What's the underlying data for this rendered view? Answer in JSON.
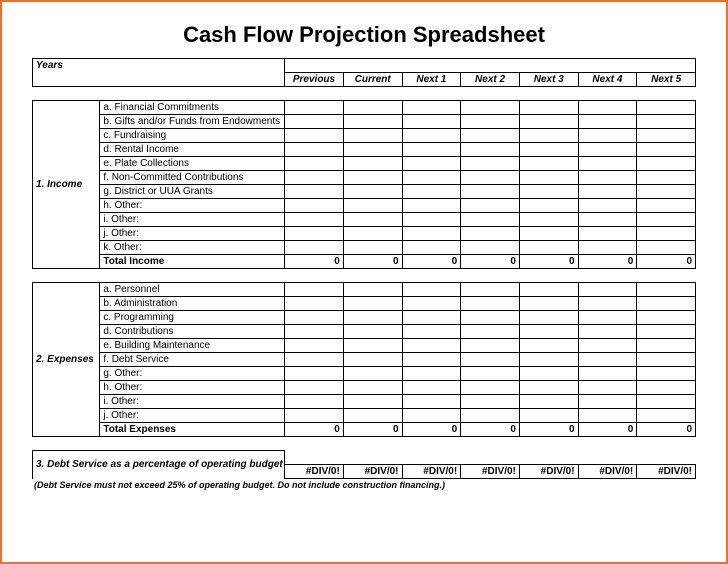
{
  "title": "Cash Flow Projection Spreadsheet",
  "years_label": "Years",
  "columns": [
    "Previous",
    "Current",
    "Next 1",
    "Next 2",
    "Next 3",
    "Next 4",
    "Next 5"
  ],
  "section_income": {
    "label": "1. Income",
    "rows": [
      "a. Financial Commitments",
      "b. Gifts and/or Funds from Endowments",
      "c. Fundraising",
      "d. Rental Income",
      "e. Plate Collections",
      "f. Non-Committed Contributions",
      "g.  District or UUA Grants",
      "h. Other:",
      "i. Other:",
      "j.  Other:",
      "k.  Other:"
    ],
    "total_label": "Total Income",
    "totals": [
      "0",
      "0",
      "0",
      "0",
      "0",
      "0",
      "0"
    ]
  },
  "section_expenses": {
    "label": "2. Expenses",
    "rows": [
      "a. Personnel",
      "b. Administration",
      "c. Programming",
      "d. Contributions",
      "e. Building Maintenance",
      "f. Debt Service",
      "g. Other:",
      "h. Other:",
      "i.  Other:",
      "j.  Other:"
    ],
    "total_label": "Total Expenses",
    "totals": [
      "0",
      "0",
      "0",
      "0",
      "0",
      "0",
      "0"
    ]
  },
  "section_debt": {
    "label": "3. Debt Service as a percentage of operating budget",
    "values": [
      "#DIV/0!",
      "#DIV/0!",
      "#DIV/0!",
      "#DIV/0!",
      "#DIV/0!",
      "#DIV/0!",
      "#DIV/0!"
    ]
  },
  "footnote": "(Debt Service must not exceed 25% of operating budget.  Do not include construction financing.)",
  "colors": {
    "page_border": "#e8712b",
    "grid": "#000000",
    "background": "#ffffff",
    "text": "#000000"
  }
}
